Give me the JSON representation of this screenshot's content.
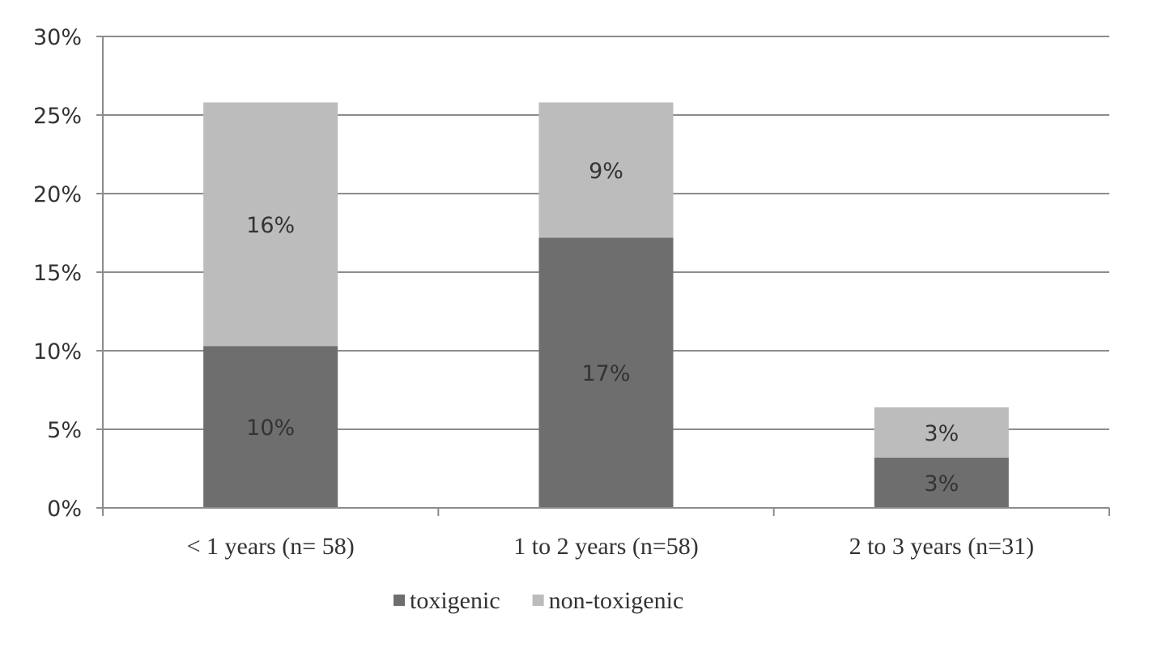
{
  "chart_data": {
    "type": "bar",
    "stacked": true,
    "categories": [
      "< 1 years (n= 58)",
      "1 to 2 years (n=58)",
      "2 to 3 years (n=31)"
    ],
    "series": [
      {
        "name": "toxigenic",
        "values": [
          10.3,
          17.2,
          3.2
        ],
        "data_labels": [
          "10%",
          "17%",
          "3%"
        ],
        "color": "#6e6e6e"
      },
      {
        "name": "non-toxigenic",
        "values": [
          15.5,
          8.6,
          3.2
        ],
        "data_labels": [
          "16%",
          "9%",
          "3%"
        ],
        "color": "#bcbcbc"
      }
    ],
    "ylim": [
      0,
      30
    ],
    "yticks": [
      0,
      5,
      10,
      15,
      20,
      25,
      30
    ],
    "ytick_labels": [
      "0%",
      "5%",
      "10%",
      "15%",
      "20%",
      "25%",
      "30%"
    ],
    "title": "",
    "xlabel": "",
    "ylabel": "",
    "grid": true,
    "legend_position": "bottom"
  }
}
